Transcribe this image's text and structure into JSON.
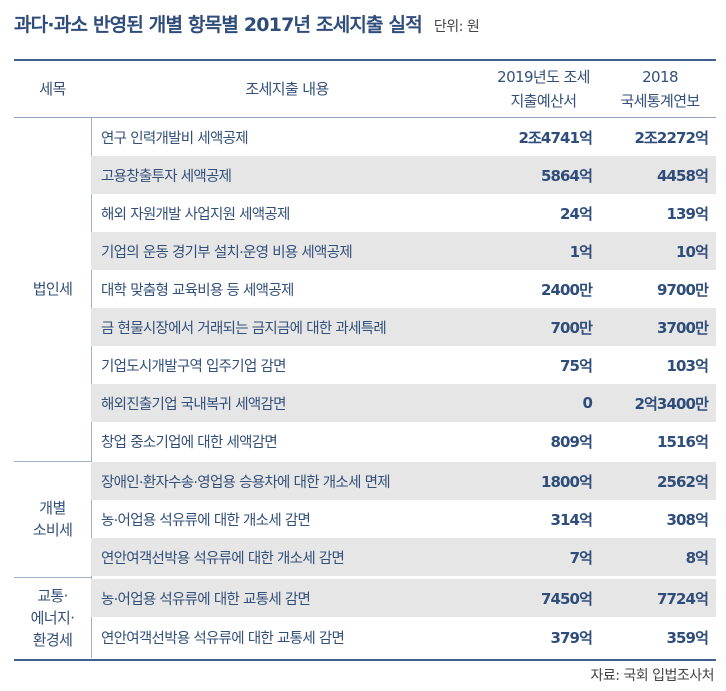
{
  "header": {
    "title": "과다·과소 반영된 개별 항목별 2017년 조세지출 실적",
    "unit": "단위: 원"
  },
  "columns": {
    "category": "세목",
    "item": "조세지출 내용",
    "col1_line1": "2019년도 조세",
    "col1_line2": "지출예산서",
    "col2_line1": "2018",
    "col2_line2": "국세통계연보"
  },
  "categories": {
    "corporate": "법인세",
    "excise_line1": "개별",
    "excise_line2": "소비세",
    "transport_line1": "교통·",
    "transport_line2": "에너지·",
    "transport_line3": "환경세"
  },
  "rows": [
    {
      "item": "연구 인력개발비 세액공제",
      "v1": "2조4741억",
      "v2": "2조2272억"
    },
    {
      "item": "고용창출투자 세액공제",
      "v1": "5864억",
      "v2": "4458억"
    },
    {
      "item": "해외 자원개발 사업지원 세액공제",
      "v1": "24억",
      "v2": "139억"
    },
    {
      "item": "기업의 운동 경기부 설치·운영 비용 세액공제",
      "v1": "1억",
      "v2": "10억"
    },
    {
      "item": "대학 맞춤형 교육비용 등 세액공제",
      "v1": "2400만",
      "v2": "9700만"
    },
    {
      "item": "금 현물시장에서 거래되는 금지금에 대한 과세특례",
      "v1": "700만",
      "v2": "3700만"
    },
    {
      "item": "기업도시개발구역 입주기업 감면",
      "v1": "75억",
      "v2": "103억"
    },
    {
      "item": "해외진출기업 국내복귀 세액감면",
      "v1": "0",
      "v2": "2억3400만"
    },
    {
      "item": "창업 중소기업에 대한 세액감면",
      "v1": "809억",
      "v2": "1516억"
    },
    {
      "item": "장애인·환자수송·영업용 승용차에 대한 개소세 면제",
      "v1": "1800억",
      "v2": "2562억"
    },
    {
      "item": "농·어업용 석유류에 대한 개소세 감면",
      "v1": "314억",
      "v2": "308억"
    },
    {
      "item": "연안여객선박용 석유류에 대한 개소세 감면",
      "v1": "7억",
      "v2": "8억"
    },
    {
      "item": "농·어업용 석유류에 대한 교통세 감면",
      "v1": "7450억",
      "v2": "7724억"
    },
    {
      "item": "연안여객선박용 석유류에 대한 교통세 감면",
      "v1": "379억",
      "v2": "359억"
    }
  ],
  "source": "자료: 국회 입법조사처"
}
